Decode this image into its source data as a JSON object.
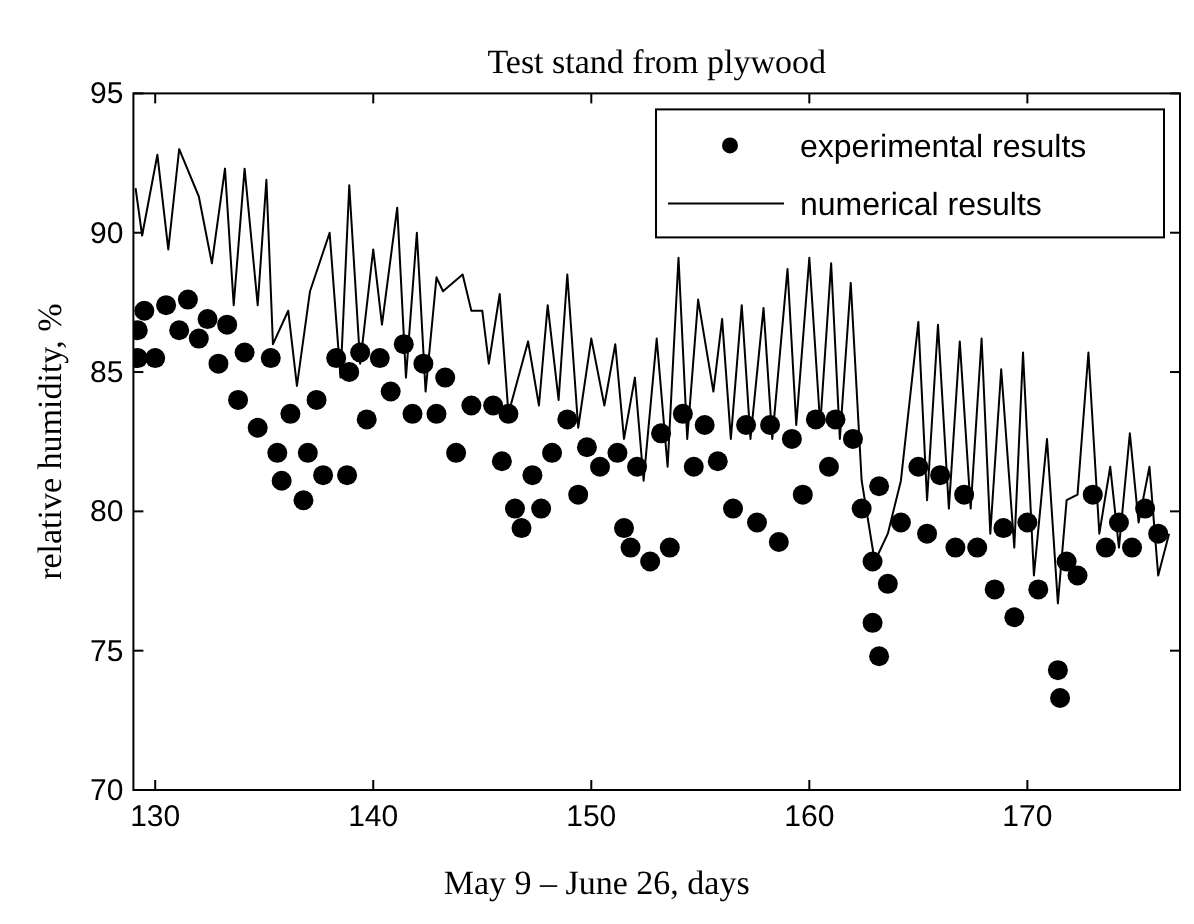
{
  "chart_data": {
    "type": "scatter",
    "title": "Test stand from plywood",
    "xlabel": "May 9 – June 26, days",
    "ylabel": "relative humidity, %",
    "xlim": [
      129,
      177
    ],
    "ylim": [
      70,
      95
    ],
    "xticks": [
      130,
      140,
      150,
      160,
      170
    ],
    "yticks": [
      70,
      75,
      80,
      85,
      90,
      95
    ],
    "legend": "top right",
    "grid": false,
    "series": [
      {
        "name": "experimental results",
        "marker": "circle",
        "color": "#000000",
        "x": [
          129.2,
          129.2,
          129.5,
          130.0,
          130.5,
          131.1,
          131.5,
          132.0,
          132.4,
          132.9,
          133.3,
          133.8,
          134.1,
          134.7,
          135.3,
          135.6,
          135.8,
          136.2,
          136.8,
          137.0,
          137.4,
          137.7,
          138.3,
          138.8,
          138.9,
          139.4,
          139.7,
          140.3,
          140.8,
          141.4,
          141.8,
          142.3,
          142.9,
          143.3,
          143.8,
          144.5,
          145.5,
          145.9,
          146.2,
          146.5,
          146.8,
          147.3,
          147.7,
          148.2,
          148.9,
          149.4,
          149.8,
          150.4,
          151.2,
          151.5,
          151.8,
          152.1,
          152.7,
          153.2,
          153.6,
          154.2,
          154.7,
          155.2,
          155.8,
          156.5,
          157.1,
          157.6,
          158.2,
          158.6,
          159.2,
          159.7,
          160.3,
          160.9,
          161.2,
          162.0,
          162.4,
          162.9,
          163.2,
          162.9,
          163.2,
          163.6,
          164.2,
          165.0,
          165.4,
          166.0,
          166.7,
          167.1,
          167.7,
          168.5,
          168.9,
          169.4,
          170.0,
          170.5,
          171.4,
          171.5,
          171.8,
          172.3,
          173.0,
          173.6,
          174.2,
          174.8,
          175.4,
          176.0
        ],
        "values": [
          86.5,
          85.5,
          87.2,
          85.5,
          87.4,
          86.5,
          87.6,
          86.2,
          86.9,
          85.3,
          86.7,
          84.0,
          85.7,
          83.0,
          85.5,
          82.1,
          81.1,
          83.5,
          80.4,
          82.1,
          84.0,
          81.3,
          85.5,
          81.3,
          85.0,
          85.7,
          83.3,
          85.5,
          84.3,
          86.0,
          83.5,
          85.3,
          83.5,
          84.8,
          82.1,
          83.8,
          83.8,
          81.8,
          83.5,
          80.1,
          79.4,
          81.3,
          80.1,
          82.1,
          83.3,
          80.6,
          82.3,
          81.6,
          82.1,
          79.4,
          78.7,
          81.6,
          78.2,
          82.8,
          78.7,
          83.5,
          81.6,
          83.1,
          81.8,
          80.1,
          83.1,
          79.6,
          83.1,
          78.9,
          82.6,
          80.6,
          83.3,
          81.6,
          83.3,
          82.6,
          80.1,
          78.2,
          80.9,
          76.0,
          74.8,
          77.4,
          79.6,
          81.6,
          79.2,
          81.3,
          78.7,
          80.6,
          78.7,
          77.2,
          79.4,
          76.2,
          79.6,
          77.2,
          74.3,
          73.3,
          78.2,
          77.7,
          80.6,
          78.7,
          79.6,
          78.7,
          80.1,
          79.2
        ]
      },
      {
        "name": "numerical results",
        "type": "line",
        "line_style": "solid",
        "color": "#000000",
        "x": [
          129.1,
          129.4,
          130.1,
          130.6,
          131.1,
          132.0,
          132.6,
          133.2,
          133.6,
          134.1,
          134.7,
          135.1,
          135.4,
          136.1,
          136.5,
          137.1,
          138.0,
          138.5,
          138.9,
          139.4,
          140.0,
          140.4,
          141.1,
          141.5,
          142.0,
          142.4,
          142.9,
          143.2,
          144.1,
          144.5,
          145.0,
          145.3,
          145.8,
          146.2,
          147.1,
          147.6,
          148.0,
          148.5,
          148.9,
          149.4,
          150.0,
          150.6,
          151.1,
          151.5,
          152.0,
          152.4,
          153.0,
          153.5,
          154.0,
          154.4,
          154.9,
          155.6,
          156.0,
          156.4,
          156.9,
          157.3,
          157.9,
          158.3,
          159.0,
          159.4,
          160.0,
          160.5,
          161.0,
          161.4,
          161.9,
          162.4,
          163.0,
          163.6,
          164.2,
          165.0,
          165.4,
          165.9,
          166.4,
          166.9,
          167.4,
          167.9,
          168.3,
          168.8,
          169.4,
          169.8,
          170.3,
          170.9,
          171.4,
          171.8,
          172.3,
          172.8,
          173.3,
          173.8,
          174.2,
          174.7,
          175.1,
          175.6,
          176.0,
          176.5
        ],
        "values": [
          91.6,
          89.9,
          92.8,
          89.4,
          93.0,
          91.3,
          88.9,
          92.3,
          87.4,
          92.3,
          87.4,
          91.9,
          86.0,
          87.2,
          84.5,
          87.9,
          90.0,
          84.8,
          91.7,
          85.3,
          89.4,
          86.7,
          90.9,
          84.8,
          90.0,
          84.3,
          88.4,
          87.9,
          88.5,
          87.2,
          87.2,
          85.3,
          87.8,
          83.5,
          86.1,
          83.8,
          87.4,
          84.0,
          88.5,
          83.0,
          86.2,
          83.8,
          86.0,
          82.6,
          84.8,
          81.1,
          86.2,
          81.6,
          89.1,
          82.6,
          87.6,
          84.3,
          86.9,
          82.6,
          87.4,
          82.6,
          87.3,
          82.6,
          88.7,
          83.1,
          89.1,
          83.1,
          88.9,
          82.6,
          88.2,
          81.1,
          78.2,
          79.2,
          81.1,
          86.8,
          80.4,
          86.7,
          80.1,
          86.1,
          80.1,
          86.2,
          79.2,
          85.1,
          78.7,
          85.7,
          77.7,
          82.6,
          76.7,
          80.4,
          80.6,
          85.7,
          79.2,
          81.6,
          78.7,
          82.8,
          79.6,
          81.6,
          77.7,
          79.2
        ]
      }
    ]
  }
}
